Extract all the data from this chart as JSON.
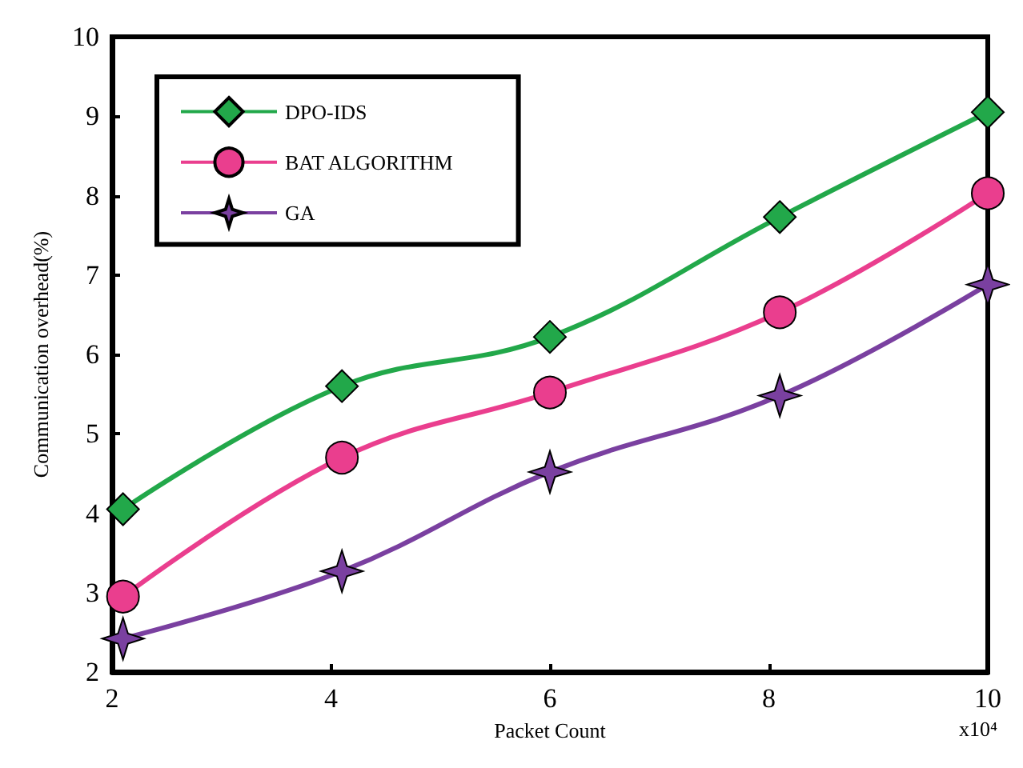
{
  "chart_data": {
    "type": "line",
    "xlabel": "Packet Count",
    "ylabel": "Communication overhead(%)",
    "annotations": [
      "x10⁴"
    ],
    "x": [
      2.1,
      4.1,
      6,
      8.1,
      10
    ],
    "xlim": [
      2,
      10
    ],
    "xticks": [
      2,
      4,
      6,
      8,
      10
    ],
    "ylim": [
      2,
      10
    ],
    "yticks": [
      2,
      3,
      4,
      5,
      6,
      7,
      8,
      9,
      10
    ],
    "grid": false,
    "legend": "top left",
    "line_style": "solid",
    "series": [
      {
        "name": "DPO-IDS",
        "color": "#22a84a",
        "marker": "diamond",
        "values": [
          4.05,
          5.6,
          6.22,
          7.73,
          9.05
        ]
      },
      {
        "name": "BAT ALGORITHM",
        "color": "#ea3e8e",
        "marker": "circle",
        "values": [
          2.95,
          4.7,
          5.52,
          6.53,
          8.03
        ]
      },
      {
        "name": "GA",
        "color": "#7a40a0",
        "marker": "star",
        "values": [
          2.42,
          3.27,
          4.52,
          5.48,
          6.88
        ]
      }
    ]
  }
}
